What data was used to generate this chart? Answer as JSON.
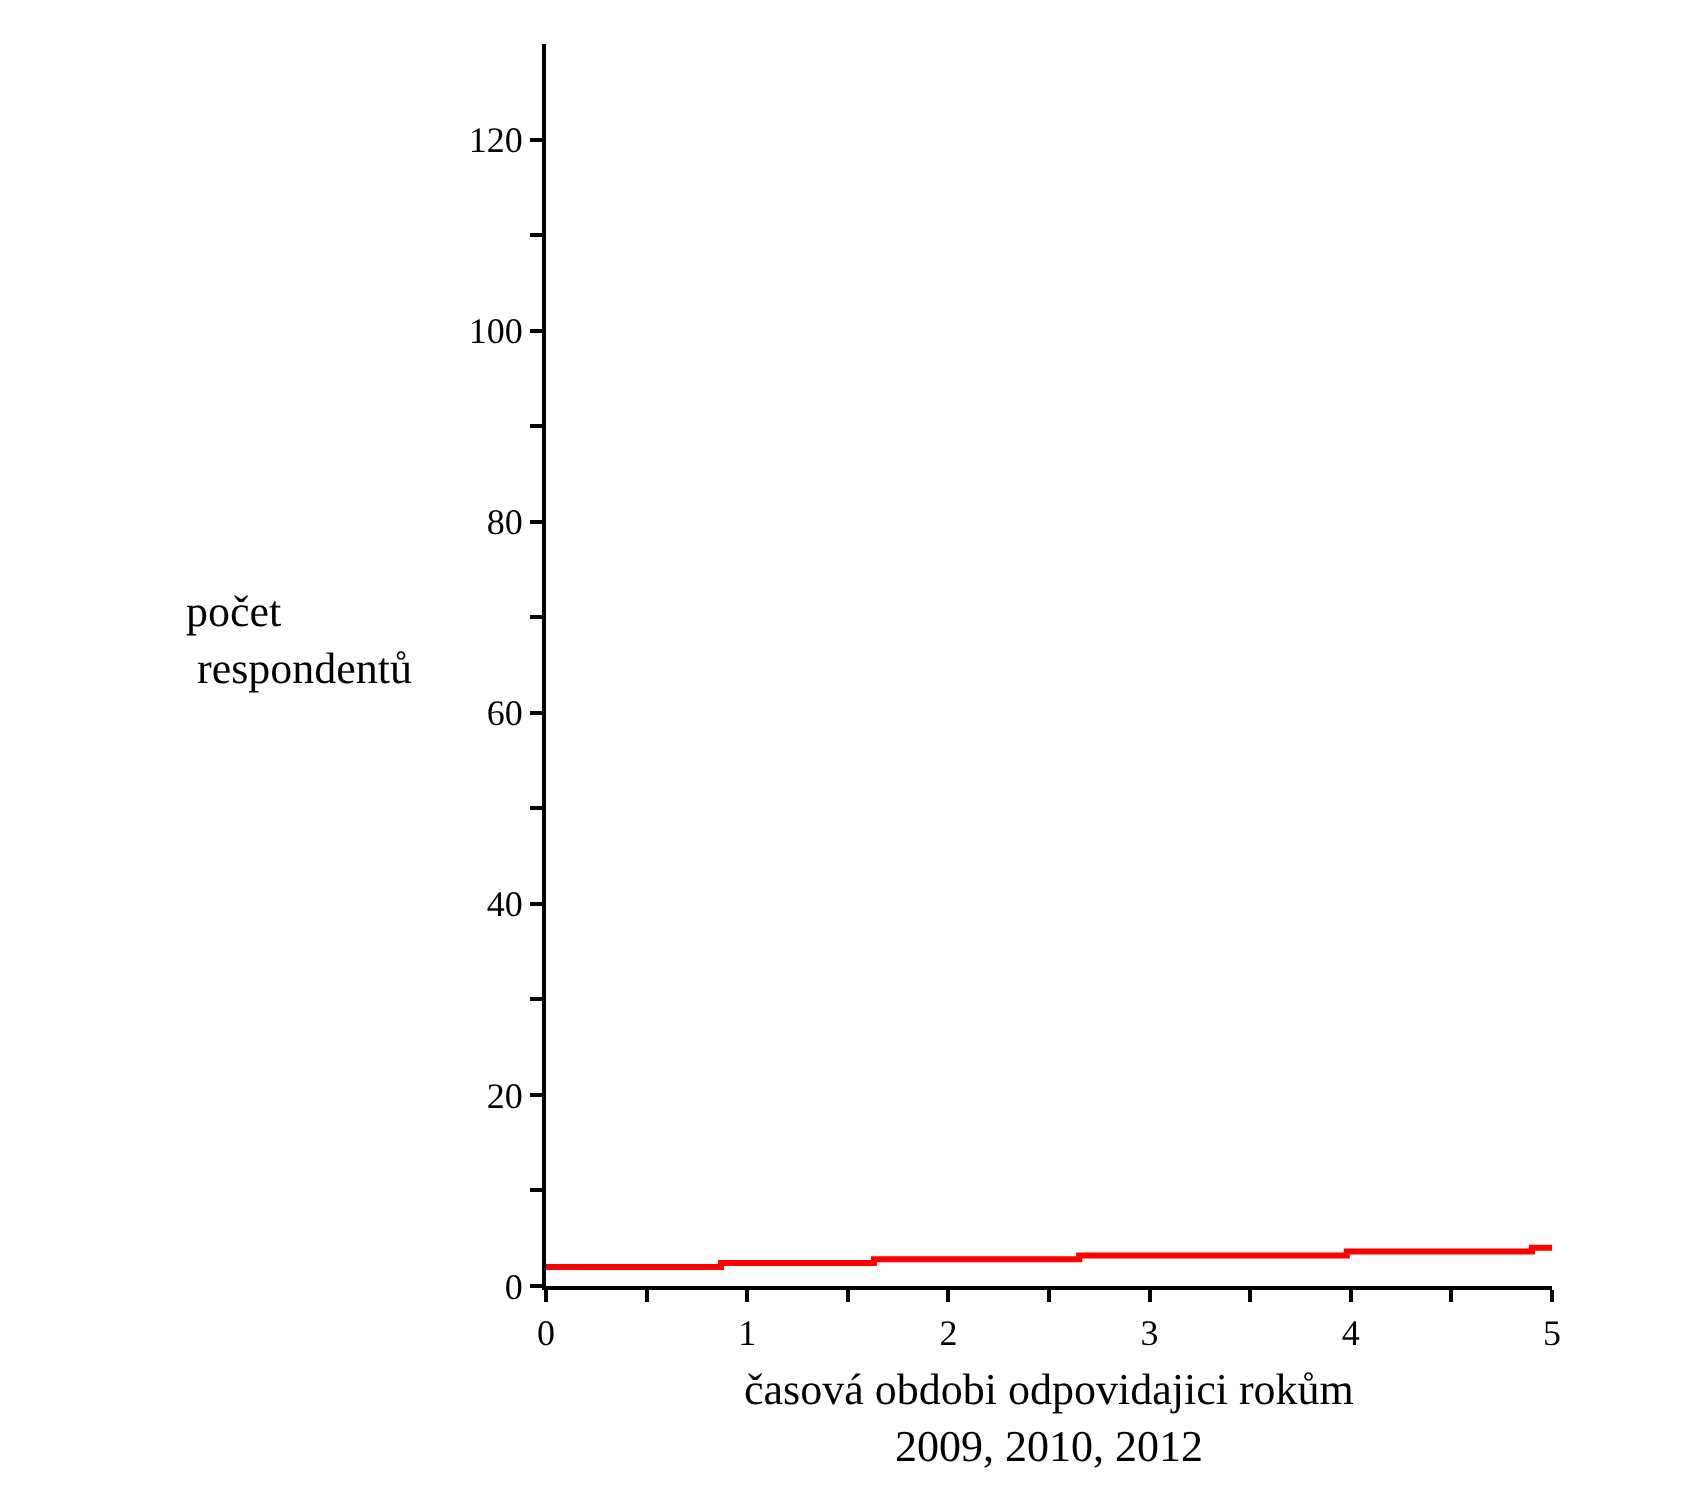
{
  "chart_data": {
    "type": "step",
    "xlabel": "časová obdobi odpovidajici rokům\n2009, 2010, 2012",
    "ylabel": "počet\n respondentů",
    "x": [
      0,
      0.87,
      1.63,
      2.65,
      3.98,
      4.9,
      5
    ],
    "series": [
      {
        "color": "#ff0000",
        "values": [
          2,
          2.4,
          2.8,
          3.2,
          3.6,
          4,
          4
        ]
      }
    ],
    "xlim": [
      0,
      5
    ],
    "ylim": [
      0,
      130
    ],
    "xticks": [
      0,
      {
        "value": 0.5,
        "label": null
      },
      1,
      {
        "value": 1.5,
        "label": null
      },
      2,
      {
        "value": 2.5,
        "label": null
      },
      3,
      {
        "value": 3.5,
        "label": null
      },
      4,
      {
        "value": 4.5,
        "label": null
      },
      5
    ],
    "yticks": [
      0,
      {
        "value": 10,
        "label": null
      },
      20,
      {
        "value": 30,
        "label": null
      },
      40,
      {
        "value": 50,
        "label": null
      },
      60,
      {
        "value": 70,
        "label": null
      },
      80,
      {
        "value": 90,
        "label": null
      },
      100,
      {
        "value": 110,
        "label": null
      },
      120
    ],
    "marker": "none",
    "line_style": "solid"
  }
}
